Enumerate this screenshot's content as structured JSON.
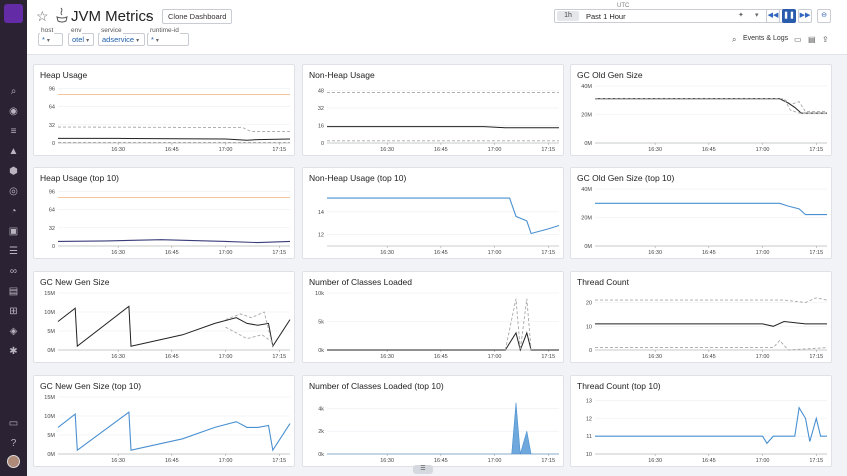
{
  "header": {
    "title": "JVM Metrics",
    "clone_label": "Clone Dashboard",
    "template_vars": [
      {
        "label": "host",
        "value": "*"
      },
      {
        "label": "env",
        "value": "otel"
      },
      {
        "label": "service",
        "value": "adservice"
      },
      {
        "label": "runtime-id",
        "value": "*"
      }
    ],
    "time": {
      "zone": "UTC",
      "short": "1h",
      "label": "Past 1 Hour"
    },
    "events_logs_label": "Events & Logs"
  },
  "colors": {
    "accent": "#632ca6",
    "series_blue": "#4a90d0",
    "series_dark": "#222222",
    "series_gray": "#a8a8a8",
    "threshold_orange": "#f4b07a"
  },
  "icons": [
    "search-icon",
    "binoculars-icon",
    "list-icon",
    "dashboards-icon",
    "infrastructure-icon",
    "apm-icon",
    "watchdog-icon",
    "monitors-icon",
    "integrations-icon",
    "logs-icon",
    "network-icon",
    "notebooks-icon",
    "security-icon",
    "synthetics-icon",
    "settings-icon",
    "help-icon",
    "chat-icon"
  ],
  "widgets": [
    {
      "title": "Heap Usage"
    },
    {
      "title": "Non-Heap Usage"
    },
    {
      "title": "GC Old Gen Size"
    },
    {
      "title": "Heap Usage (top 10)"
    },
    {
      "title": "Non-Heap Usage (top 10)"
    },
    {
      "title": "GC Old Gen Size (top 10)"
    },
    {
      "title": "GC New Gen Size"
    },
    {
      "title": "Number of Classes Loaded"
    },
    {
      "title": "Thread Count"
    },
    {
      "title": "GC New Gen Size (top 10)"
    },
    {
      "title": "Number of Classes Loaded (top 10)"
    },
    {
      "title": "Thread Count (top 10)"
    }
  ],
  "chart_data": [
    {
      "type": "line",
      "title": "Heap Usage",
      "x": [
        "16:30",
        "16:45",
        "17:00",
        "17:15"
      ],
      "yticks": [
        "0",
        "32",
        "64",
        "96"
      ],
      "ylim": [
        0,
        100
      ],
      "series": [
        {
          "style": "threshold",
          "values": [
            [
              16.22,
              85
            ],
            [
              17.3,
              85
            ]
          ]
        },
        {
          "style": "dashed",
          "values": [
            [
              16.22,
              28
            ],
            [
              17.08,
              27
            ],
            [
              17.12,
              20
            ],
            [
              17.3,
              20
            ]
          ]
        },
        {
          "style": "solid",
          "values": [
            [
              16.22,
              8
            ],
            [
              16.5,
              8
            ],
            [
              17.0,
              7
            ],
            [
              17.1,
              5
            ],
            [
              17.15,
              6
            ],
            [
              17.3,
              7
            ]
          ]
        },
        {
          "style": "dashed",
          "values": [
            [
              16.22,
              1
            ],
            [
              17.3,
              1
            ]
          ]
        }
      ]
    },
    {
      "type": "line",
      "title": "Non-Heap Usage",
      "x": [
        "16:30",
        "16:45",
        "17:00",
        "17:15"
      ],
      "yticks": [
        "0",
        "16",
        "32",
        "48"
      ],
      "ylim": [
        0,
        52
      ],
      "series": [
        {
          "style": "dashed",
          "values": [
            [
              16.22,
              46
            ],
            [
              17.3,
              46
            ]
          ]
        },
        {
          "style": "solid",
          "values": [
            [
              16.22,
              15
            ],
            [
              16.95,
              15
            ],
            [
              17.05,
              14
            ],
            [
              17.2,
              14
            ],
            [
              17.3,
              14
            ]
          ]
        },
        {
          "style": "dashed",
          "values": [
            [
              16.22,
              2
            ],
            [
              17.3,
              2
            ]
          ]
        }
      ]
    },
    {
      "type": "line",
      "title": "GC Old Gen Size",
      "x": [
        "16:30",
        "16:45",
        "17:00",
        "17:15"
      ],
      "yticks": [
        "0M",
        "20M",
        "40M"
      ],
      "ylim": [
        0,
        40
      ],
      "series": [
        {
          "style": "dashed",
          "values": [
            [
              16.22,
              31
            ],
            [
              17.1,
              31
            ],
            [
              17.13,
              27
            ],
            [
              17.17,
              29
            ],
            [
              17.2,
              22
            ],
            [
              17.3,
              22
            ]
          ]
        },
        {
          "style": "solid",
          "values": [
            [
              16.22,
              31
            ],
            [
              17.08,
              31
            ],
            [
              17.12,
              28
            ],
            [
              17.15,
              25
            ],
            [
              17.18,
              21
            ],
            [
              17.3,
              21
            ]
          ]
        },
        {
          "style": "dashed",
          "values": [
            [
              16.22,
              31
            ],
            [
              17.1,
              31
            ],
            [
              17.13,
              23
            ],
            [
              17.17,
              21
            ],
            [
              17.3,
              21
            ]
          ]
        }
      ]
    },
    {
      "type": "line",
      "title": "Heap Usage (top 10)",
      "x": [
        "16:30",
        "16:45",
        "17:00",
        "17:15"
      ],
      "yticks": [
        "0",
        "32",
        "64",
        "96"
      ],
      "ylim": [
        0,
        100
      ],
      "series": [
        {
          "style": "threshold",
          "values": [
            [
              16.22,
              85
            ],
            [
              17.3,
              85
            ]
          ]
        },
        {
          "style": "purple",
          "values": [
            [
              16.22,
              8
            ],
            [
              16.45,
              9
            ],
            [
              16.7,
              11
            ],
            [
              17.0,
              8
            ],
            [
              17.15,
              6
            ],
            [
              17.3,
              8
            ]
          ]
        }
      ]
    },
    {
      "type": "line",
      "title": "Non-Heap Usage (top 10)",
      "x": [
        "16:30",
        "16:45",
        "17:00",
        "17:15"
      ],
      "yticks": [
        "12",
        "14"
      ],
      "ylim": [
        11,
        16
      ],
      "series": [
        {
          "style": "blue",
          "values": [
            [
              16.22,
              15.2
            ],
            [
              17.07,
              15.2
            ],
            [
              17.1,
              13.6
            ],
            [
              17.15,
              13.2
            ],
            [
              17.17,
              12.1
            ],
            [
              17.25,
              12.5
            ],
            [
              17.3,
              12.8
            ]
          ]
        }
      ]
    },
    {
      "type": "line",
      "title": "GC Old Gen Size (top 10)",
      "x": [
        "16:30",
        "16:45",
        "17:00",
        "17:15"
      ],
      "yticks": [
        "0M",
        "20M",
        "40M"
      ],
      "ylim": [
        0,
        40
      ],
      "series": [
        {
          "style": "blue",
          "values": [
            [
              16.22,
              30
            ],
            [
              17.08,
              30
            ],
            [
              17.12,
              28
            ],
            [
              17.17,
              26
            ],
            [
              17.2,
              22
            ],
            [
              17.3,
              22
            ]
          ]
        }
      ]
    },
    {
      "type": "line",
      "title": "GC New Gen Size",
      "x": [
        "16:30",
        "16:45",
        "17:00",
        "17:15"
      ],
      "yticks": [
        "0M",
        "5M",
        "10M",
        "15M"
      ],
      "ylim": [
        0,
        15
      ],
      "series": [
        {
          "style": "solid",
          "values": [
            [
              16.22,
              7.5
            ],
            [
              16.3,
              11
            ],
            [
              16.31,
              1
            ],
            [
              16.55,
              11.5
            ],
            [
              16.56,
              1
            ],
            [
              16.8,
              4
            ],
            [
              16.95,
              7
            ],
            [
              17.05,
              8.5
            ],
            [
              17.1,
              7
            ],
            [
              17.15,
              6.5
            ],
            [
              17.2,
              7
            ],
            [
              17.22,
              1
            ],
            [
              17.3,
              8
            ]
          ]
        },
        {
          "style": "dashed",
          "values": [
            [
              17.0,
              8
            ],
            [
              17.07,
              9.5
            ],
            [
              17.12,
              8.5
            ],
            [
              17.18,
              10
            ],
            [
              17.22,
              1
            ]
          ]
        },
        {
          "style": "dashed",
          "values": [
            [
              17.0,
              6
            ],
            [
              17.05,
              4.5
            ],
            [
              17.1,
              3
            ],
            [
              17.17,
              4
            ],
            [
              17.22,
              2
            ]
          ]
        }
      ]
    },
    {
      "type": "line",
      "title": "Number of Classes Loaded",
      "x": [
        "16:30",
        "16:45",
        "17:00",
        "17:15"
      ],
      "yticks": [
        "0k",
        "5k",
        "10k"
      ],
      "ylim": [
        0,
        10
      ],
      "series": [
        {
          "style": "solid",
          "values": [
            [
              16.22,
              0
            ],
            [
              17.05,
              0
            ],
            [
              17.1,
              3
            ],
            [
              17.12,
              0
            ],
            [
              17.15,
              3
            ],
            [
              17.17,
              0
            ],
            [
              17.3,
              0
            ]
          ]
        },
        {
          "style": "dashed",
          "values": [
            [
              17.05,
              0
            ],
            [
              17.1,
              9
            ],
            [
              17.12,
              0
            ],
            [
              17.15,
              9
            ],
            [
              17.17,
              0
            ]
          ]
        }
      ]
    },
    {
      "type": "line",
      "title": "Thread Count",
      "x": [
        "16:30",
        "16:45",
        "17:00",
        "17:15"
      ],
      "yticks": [
        "0",
        "10",
        "20"
      ],
      "ylim": [
        0,
        24
      ],
      "series": [
        {
          "style": "dashed",
          "values": [
            [
              16.22,
              21
            ],
            [
              17.1,
              21
            ],
            [
              17.2,
              20
            ],
            [
              17.25,
              22
            ],
            [
              17.3,
              21
            ]
          ]
        },
        {
          "style": "solid",
          "values": [
            [
              16.22,
              11
            ],
            [
              17.0,
              11
            ],
            [
              17.05,
              10
            ],
            [
              17.1,
              12
            ],
            [
              17.2,
              11
            ],
            [
              17.3,
              11
            ]
          ]
        },
        {
          "style": "dashed",
          "values": [
            [
              16.22,
              1
            ],
            [
              17.05,
              1
            ],
            [
              17.08,
              4
            ],
            [
              17.12,
              0
            ],
            [
              17.3,
              1
            ]
          ]
        }
      ]
    },
    {
      "type": "line",
      "title": "GC New Gen Size (top 10)",
      "x": [
        "16:30",
        "16:45",
        "17:00",
        "17:15"
      ],
      "yticks": [
        "0M",
        "5M",
        "10M",
        "15M"
      ],
      "ylim": [
        0,
        15
      ],
      "series": [
        {
          "style": "blue",
          "values": [
            [
              16.22,
              7
            ],
            [
              16.3,
              10.5
            ],
            [
              16.31,
              1
            ],
            [
              16.55,
              11
            ],
            [
              16.56,
              1
            ],
            [
              16.8,
              4
            ],
            [
              16.95,
              7
            ],
            [
              17.05,
              8.5
            ],
            [
              17.1,
              7
            ],
            [
              17.15,
              7
            ],
            [
              17.2,
              7.5
            ],
            [
              17.22,
              1
            ],
            [
              17.3,
              8
            ]
          ]
        }
      ]
    },
    {
      "type": "area",
      "title": "Number of Classes Loaded (top 10)",
      "x": [
        "16:30",
        "16:45",
        "17:00",
        "17:15"
      ],
      "yticks": [
        "0k",
        "2k",
        "4k"
      ],
      "ylim": [
        0,
        5
      ],
      "series": [
        {
          "style": "blue-area",
          "values": [
            [
              16.22,
              0
            ],
            [
              17.08,
              0
            ],
            [
              17.1,
              4.5
            ],
            [
              17.12,
              0
            ],
            [
              17.15,
              2
            ],
            [
              17.17,
              0
            ],
            [
              17.3,
              0
            ]
          ]
        }
      ]
    },
    {
      "type": "line",
      "title": "Thread Count (top 10)",
      "x": [
        "16:30",
        "16:45",
        "17:00",
        "17:15"
      ],
      "yticks": [
        "10",
        "11",
        "12",
        "13"
      ],
      "ylim": [
        10,
        13.2
      ],
      "series": [
        {
          "style": "blue",
          "values": [
            [
              16.22,
              11
            ],
            [
              17.0,
              11
            ],
            [
              17.02,
              10.6
            ],
            [
              17.05,
              11
            ],
            [
              17.15,
              11
            ],
            [
              17.17,
              12.6
            ],
            [
              17.2,
              12
            ],
            [
              17.22,
              10.7
            ],
            [
              17.25,
              12
            ],
            [
              17.27,
              11
            ],
            [
              17.3,
              11
            ]
          ]
        }
      ]
    }
  ]
}
